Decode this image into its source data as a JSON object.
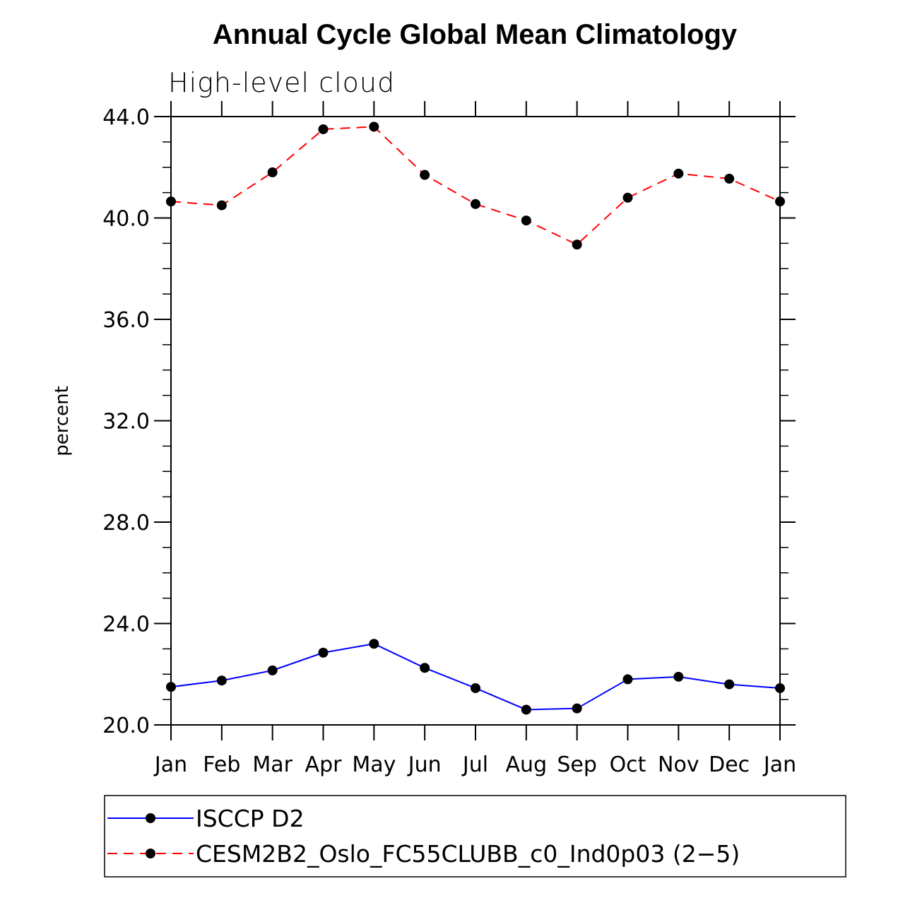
{
  "chart_data": {
    "type": "line",
    "title": "Annual Cycle Global Mean Climatology",
    "subtitle": "High-level cloud",
    "xlabel": "",
    "ylabel": "percent",
    "categories": [
      "Jan",
      "Feb",
      "Mar",
      "Apr",
      "May",
      "Jun",
      "Jul",
      "Aug",
      "Sep",
      "Oct",
      "Nov",
      "Dec",
      "Jan"
    ],
    "ylim": [
      20.0,
      44.0
    ],
    "yticks": [
      "20.0",
      "24.0",
      "28.0",
      "32.0",
      "36.0",
      "40.0",
      "44.0"
    ],
    "series": [
      {
        "name": "ISCCP D2",
        "color": "#0000ff",
        "dash": "solid",
        "marker": "filled-circle",
        "values": [
          21.5,
          21.75,
          22.15,
          22.85,
          23.2,
          22.25,
          21.45,
          20.6,
          20.65,
          21.8,
          21.9,
          21.6,
          21.45
        ]
      },
      {
        "name": "CESM2B2_Oslo_FC55CLUBB_c0_Ind0p03 (2−5)",
        "color": "#ff0000",
        "dash": "dashed",
        "marker": "filled-circle",
        "values": [
          40.65,
          40.5,
          41.8,
          43.5,
          43.6,
          41.7,
          40.55,
          39.9,
          38.95,
          40.8,
          41.75,
          41.55,
          40.65
        ]
      }
    ],
    "legend": "bottom",
    "grid": false
  }
}
